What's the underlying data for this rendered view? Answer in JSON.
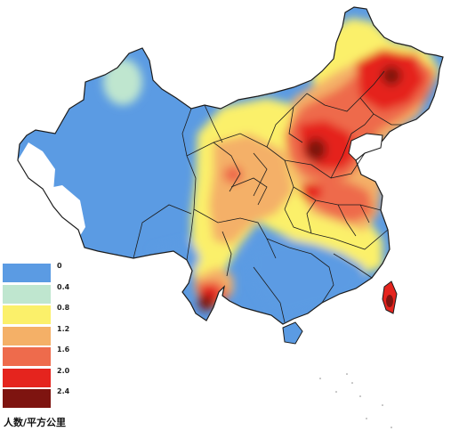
{
  "legend": {
    "unit": "人数/平方公里",
    "items": [
      {
        "label": "0",
        "color": "#5b9be3"
      },
      {
        "label": "0.4",
        "color": "#bfe6cf"
      },
      {
        "label": "0.8",
        "color": "#fbf06a"
      },
      {
        "label": "1.2",
        "color": "#f4b067"
      },
      {
        "label": "1.6",
        "color": "#ee6b4c"
      },
      {
        "label": "2.0",
        "color": "#e5241e"
      },
      {
        "label": "2.4",
        "color": "#7e1410"
      }
    ]
  },
  "colors": {
    "white": "#ffffff",
    "boundary": "#1c1c1c"
  }
}
